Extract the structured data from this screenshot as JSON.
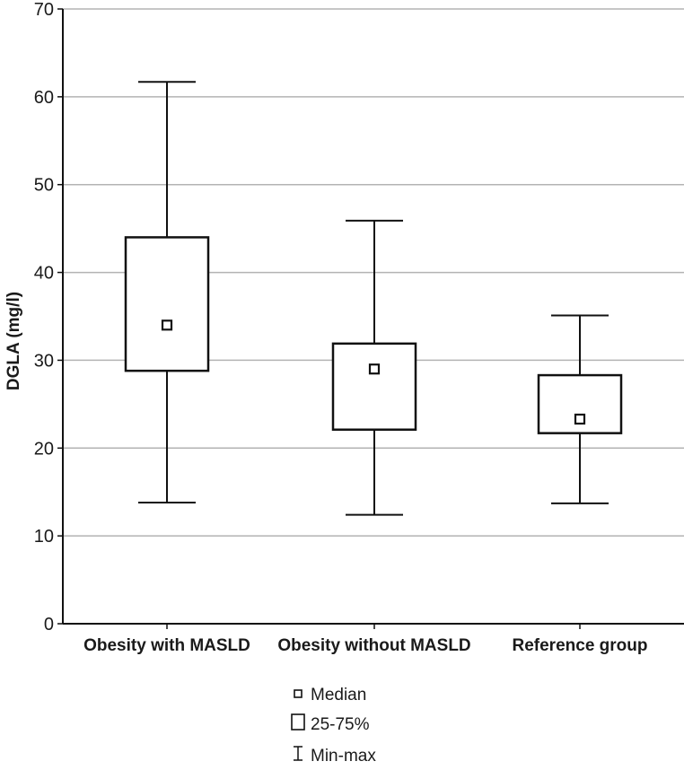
{
  "chart_data": {
    "type": "boxplot",
    "ylabel": "DGLA (mg/l)",
    "ylim": [
      0,
      70
    ],
    "yticks": [
      0,
      10,
      20,
      30,
      40,
      50,
      60,
      70
    ],
    "grid": true,
    "categories": [
      "Obesity with MASLD",
      "Obesity without MASLD",
      "Reference group"
    ],
    "boxes": [
      {
        "category": "Obesity with MASLD",
        "min": 13.8,
        "q1": 28.8,
        "median": 34,
        "q3": 44,
        "max": 61.7
      },
      {
        "category": "Obesity without MASLD",
        "min": 12.4,
        "q1": 22.1,
        "median": 29,
        "q3": 31.9,
        "max": 45.9
      },
      {
        "category": "Reference group",
        "min": 13.7,
        "q1": 21.7,
        "median": 23.3,
        "q3": 28.3,
        "max": 35.1
      }
    ],
    "legend": {
      "position": "bottom-center",
      "items": [
        {
          "symbol": "square-small",
          "label": "Median"
        },
        {
          "symbol": "rect",
          "label": "25-75%"
        },
        {
          "symbol": "whisker",
          "label": "Min-max"
        }
      ]
    },
    "colors": {
      "line": "#111111",
      "grid": "#b3b3b3",
      "text": "#1a1a1a"
    }
  }
}
